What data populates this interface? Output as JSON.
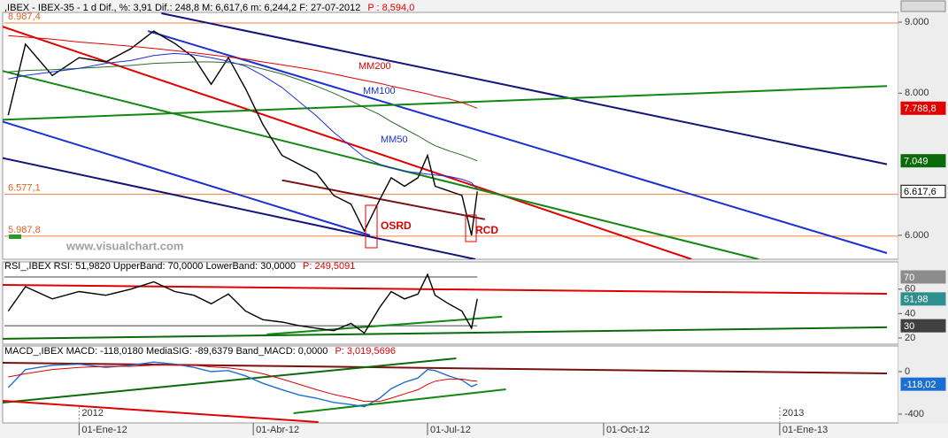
{
  "chart_data": [
    {
      "type": "line",
      "title": ",IBEX - IBEX-35 - 1 d Dif., %: 3,91 Dif.: 248,8 M: 6,617,6 m: 6,244,2 F: 27-07-2012",
      "title_extra": "P : 8,594,0",
      "x": [
        "2011-11-25",
        "2011-12-04",
        "2011-12-18",
        "2012-01-01",
        "2012-01-15",
        "2012-01-28",
        "2012-02-09",
        "2012-02-20",
        "2012-03-01",
        "2012-03-10",
        "2012-03-19",
        "2012-03-28",
        "2012-04-06",
        "2012-04-16",
        "2012-04-25",
        "2012-05-04",
        "2012-05-13",
        "2012-05-22",
        "2012-05-29",
        "2012-06-06",
        "2012-06-12",
        "2012-06-19",
        "2012-06-26",
        "2012-07-01",
        "2012-07-05",
        "2012-07-12",
        "2012-07-19",
        "2012-07-24",
        "2012-07-27"
      ],
      "series": [
        {
          "color": "#000000",
          "values": [
            7690,
            8690,
            8250,
            8500,
            8440,
            8625,
            8875,
            8700,
            8500,
            8125,
            8500,
            8060,
            7560,
            7125,
            7000,
            6875,
            6560,
            6440,
            6060,
            6500,
            6810,
            6690,
            6810,
            7125,
            6690,
            6625,
            6560,
            6000,
            6617.6
          ]
        },
        {
          "name": "MM200",
          "color": "#e00000",
          "values": [
            8810,
            8790,
            8760,
            8720,
            8690,
            8660,
            8630,
            8600,
            8570,
            8540,
            8510,
            8480,
            8440,
            8400,
            8360,
            8320,
            8270,
            8220,
            8180,
            8140,
            8100,
            8060,
            8020,
            7990,
            7960,
            7920,
            7870,
            7820,
            7788.8
          ]
        },
        {
          "name": "MM100",
          "color": "#2a6a2a",
          "values": [
            8300,
            8320,
            8330,
            8350,
            8370,
            8390,
            8420,
            8430,
            8440,
            8440,
            8430,
            8400,
            8340,
            8270,
            8190,
            8100,
            8000,
            7890,
            7800,
            7700,
            7600,
            7500,
            7400,
            7320,
            7260,
            7190,
            7130,
            7080,
            7049
          ]
        },
        {
          "name": "MM50",
          "color": "#1c2fd0",
          "values": [
            8200,
            8250,
            8300,
            8350,
            8420,
            8460,
            8530,
            8560,
            8540,
            8500,
            8450,
            8380,
            8250,
            8080,
            7880,
            7680,
            7450,
            7250,
            7100,
            7000,
            6950,
            6900,
            6880,
            6860,
            6850,
            6830,
            6790,
            6740,
            6650
          ]
        }
      ],
      "trendlines": [
        {
          "color": "#e00000",
          "x": [
            "2011-11-22",
            "2012-11-16"
          ],
          "values": [
            8937.5,
            5662.5
          ]
        },
        {
          "color": "#1c2fd0",
          "x": [
            "2012-02-06",
            "2013-02-26"
          ],
          "values": [
            8875,
            5750
          ]
        },
        {
          "color": "#14147a",
          "x": [
            "2012-02-13",
            "2013-02-26"
          ],
          "values": [
            9125,
            7000
          ]
        },
        {
          "color": "#1c2fd0",
          "x": [
            "2011-11-22",
            "2012-06-01"
          ],
          "values": [
            7600,
            6000
          ]
        },
        {
          "color": "#14147a",
          "x": [
            "2011-11-22",
            "2012-07-26"
          ],
          "values": [
            7087.5,
            5662.5
          ]
        },
        {
          "color": "#128812",
          "x": [
            "2011-11-22",
            "2012-12-21"
          ],
          "values": [
            8312.5,
            5662.5
          ]
        },
        {
          "color": "#128812",
          "x": [
            "2011-11-22",
            "2013-02-26"
          ],
          "values": [
            7625,
            8100
          ]
        },
        {
          "color": "#7a1010",
          "x": [
            "2012-04-16",
            "2012-07-31"
          ],
          "values": [
            6775,
            6225
          ]
        }
      ],
      "reference_lines": [
        {
          "value": 8987.4,
          "label": "8.987,4"
        },
        {
          "value": 6577.1,
          "label": "6.577,1"
        },
        {
          "value": 5987.8,
          "label": "5.987,8"
        }
      ],
      "markers": [
        {
          "value": 7788.8,
          "label": "7.788,8",
          "color": "#e00000"
        },
        {
          "value": 7049,
          "label": "7.049",
          "color": "#0b6b0b"
        },
        {
          "value": 6617.6,
          "label": "6.617,6",
          "color": "#ffffff"
        }
      ],
      "annotations": [
        "OSRD",
        "RCD",
        "www.visualchart.com"
      ],
      "xlim": [
        "2011-11-23",
        "2013-03-04"
      ],
      "ylim": [
        5675,
        9125
      ],
      "yticks": [
        {
          "value": 9000,
          "label": "9.000"
        },
        {
          "value": 8000,
          "label": "8.000"
        },
        {
          "value": 6000,
          "label": "6.000"
        }
      ]
    },
    {
      "type": "line",
      "title": "RSI_,IBEX RSI: 51,9820 UpperBand: 70,0000 LowerBand: 30,0000",
      "title_extra": "P: 249,5091",
      "x": [
        "2011-11-25",
        "2011-12-04",
        "2011-12-18",
        "2012-01-01",
        "2012-01-15",
        "2012-01-28",
        "2012-02-09",
        "2012-02-20",
        "2012-03-01",
        "2012-03-10",
        "2012-03-19",
        "2012-03-28",
        "2012-04-06",
        "2012-04-16",
        "2012-04-25",
        "2012-05-04",
        "2012-05-13",
        "2012-05-22",
        "2012-05-29",
        "2012-06-06",
        "2012-06-12",
        "2012-06-19",
        "2012-06-26",
        "2012-07-01",
        "2012-07-05",
        "2012-07-12",
        "2012-07-19",
        "2012-07-24",
        "2012-07-27"
      ],
      "series": [
        {
          "color": "#000000",
          "values": [
            42,
            62,
            52,
            58,
            55,
            60,
            66,
            58,
            55,
            48,
            56,
            42,
            35,
            33,
            30,
            28,
            26,
            32,
            24,
            45,
            58,
            52,
            56,
            72,
            55,
            48,
            42,
            28,
            51.98
          ]
        }
      ],
      "trendlines": [
        {
          "color": "#e00000",
          "x": [
            "2011-11-22",
            "2013-02-26"
          ],
          "values": [
            63.5,
            56.2
          ]
        },
        {
          "color": "#0b6b0b",
          "x": [
            "2011-11-22",
            "2013-02-26"
          ],
          "values": [
            19.3,
            28.7
          ]
        },
        {
          "color": "#128812",
          "x": [
            "2012-04-08",
            "2012-08-09"
          ],
          "values": [
            22.9,
            37.4
          ]
        }
      ],
      "markers": [
        {
          "value": 70,
          "label": "70",
          "color": "#8c8c8c"
        },
        {
          "value": 51.98,
          "label": "51,98",
          "color": "#2f8f8f"
        },
        {
          "value": 30,
          "label": "30",
          "color": "#404040"
        }
      ],
      "xlim": [
        "2011-11-23",
        "2013-03-04"
      ],
      "ylim": [
        15.6,
        81.6
      ],
      "yticks": [
        60,
        40,
        20
      ]
    },
    {
      "type": "line",
      "title": "MACD_,IBEX MACD: -118,0180 MediaSIG: -89,6379 Band_MACD: 0,0000",
      "title_extra": "P: 3,019,5696",
      "x": [
        "2011-11-25",
        "2011-12-04",
        "2011-12-18",
        "2012-01-01",
        "2012-01-15",
        "2012-01-28",
        "2012-02-09",
        "2012-02-20",
        "2012-03-01",
        "2012-03-10",
        "2012-03-19",
        "2012-03-28",
        "2012-04-06",
        "2012-04-16",
        "2012-04-25",
        "2012-05-04",
        "2012-05-13",
        "2012-05-22",
        "2012-05-29",
        "2012-06-06",
        "2012-06-12",
        "2012-06-19",
        "2012-06-26",
        "2012-07-01",
        "2012-07-05",
        "2012-07-12",
        "2012-07-19",
        "2012-07-24",
        "2012-07-27"
      ],
      "series": [
        {
          "color": "#1c6fd0",
          "values": [
            -150,
            20,
            60,
            70,
            40,
            60,
            90,
            70,
            40,
            0,
            10,
            -40,
            -110,
            -170,
            -220,
            -250,
            -290,
            -310,
            -330,
            -250,
            -160,
            -100,
            -60,
            20,
            10,
            -40,
            -80,
            -140,
            -118.018
          ]
        },
        {
          "color": "#e00000",
          "values": [
            -50,
            -20,
            20,
            40,
            50,
            50,
            60,
            65,
            60,
            45,
            35,
            15,
            -20,
            -70,
            -120,
            -170,
            -215,
            -250,
            -280,
            -280,
            -250,
            -210,
            -170,
            -120,
            -90,
            -70,
            -70,
            -85,
            -89.6379
          ]
        }
      ],
      "trendlines": [
        {
          "color": "#7a1010",
          "x": [
            "2011-11-22",
            "2013-02-26"
          ],
          "values": [
            83,
            -17
          ]
        },
        {
          "color": "#0b6b0b",
          "x": [
            "2011-11-22",
            "2012-07-16"
          ],
          "values": [
            -292,
            125
          ]
        },
        {
          "color": "#128812",
          "x": [
            "2012-04-22",
            "2012-08-11"
          ],
          "values": [
            -392,
            -167
          ]
        },
        {
          "color": "#e00000",
          "x": [
            "2011-11-22",
            "2012-05-05"
          ],
          "values": [
            -275,
            -475
          ]
        }
      ],
      "markers": [
        {
          "value": -118.02,
          "label": "-118,02",
          "color": "#1c6fd0"
        }
      ],
      "xlim": [
        "2011-11-23",
        "2013-03-04"
      ],
      "ylim": [
        -475,
        233
      ],
      "yticks": [
        0,
        -400
      ],
      "xticks": [
        {
          "value": "2012-01-01",
          "label": "01-Ene-12"
        },
        {
          "value": "2012-04-01",
          "label": "01-Abr-12"
        },
        {
          "value": "2012-07-01",
          "label": "01-Jul-12"
        },
        {
          "value": "2012-10-01",
          "label": "01-Oct-12"
        },
        {
          "value": "2013-01-01",
          "label": "01-Ene-13"
        }
      ],
      "year_ticks": [
        {
          "value": "2012-01-01",
          "label": "2012"
        },
        {
          "value": "2013-01-01",
          "label": "2013"
        }
      ]
    }
  ]
}
